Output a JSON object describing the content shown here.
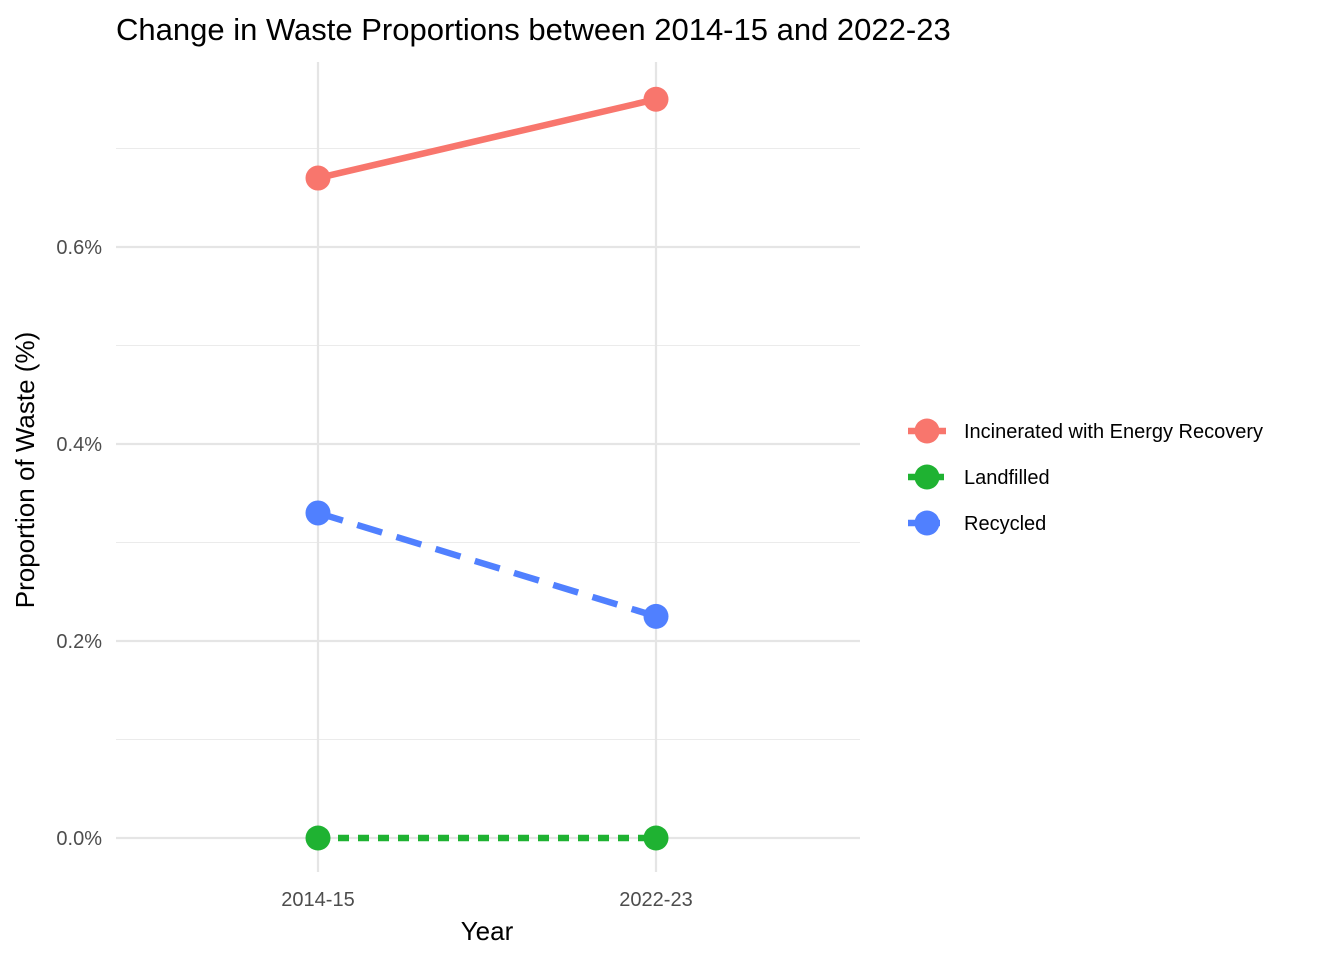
{
  "chart_data": {
    "type": "line",
    "title": "Change in Waste Proportions between 2014-15 and 2022-23",
    "xlabel": "Year",
    "ylabel": "Proportion of Waste (%)",
    "categories": [
      "2014-15",
      "2022-23"
    ],
    "y_ticks": [
      "0.0%",
      "0.2%",
      "0.4%",
      "0.6%"
    ],
    "y_tick_values": [
      0,
      0.2,
      0.4,
      0.6
    ],
    "ylim": [
      -0.0032,
      0.0076
    ],
    "y_scale": 0.01,
    "grid": true,
    "legend_position": "right",
    "series": [
      {
        "name": "Incinerated with Energy Recovery",
        "values": [
          0.0067,
          0.0075
        ],
        "color": "#F8766D",
        "line_style": "solid"
      },
      {
        "name": "Landfilled",
        "values": [
          0.0,
          0.0
        ],
        "color": "#1FB232",
        "line_style": "dotted"
      },
      {
        "name": "Recycled",
        "values": [
          0.0033,
          0.00225
        ],
        "color": "#5080FF",
        "line_style": "dashed"
      }
    ]
  }
}
